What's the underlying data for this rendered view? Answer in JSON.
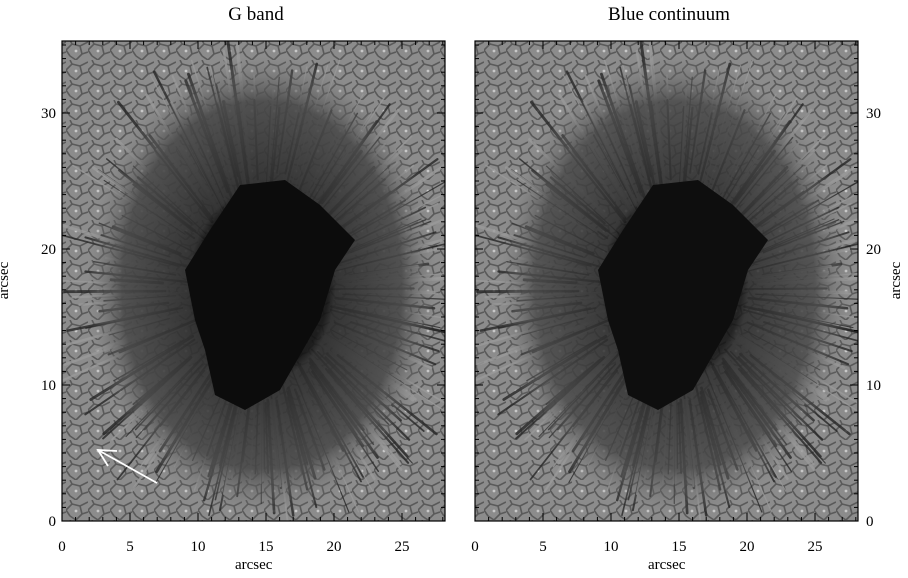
{
  "panels": [
    {
      "title": "G band",
      "xlabel": "arcsec",
      "ylabel": "arcsec"
    },
    {
      "title": "Blue continuum",
      "xlabel": "arcsec",
      "ylabel": "arcsec"
    }
  ],
  "x_ticks": [
    "0",
    "5",
    "10",
    "15",
    "20",
    "25"
  ],
  "y_ticks": [
    "0",
    "10",
    "20",
    "30"
  ],
  "colors": {
    "frame": "#000000",
    "arrow": "#ffffff",
    "penumbra": "#3a3a3a",
    "umbra": "#0d0d0d",
    "granulation": "#8a8a8a"
  },
  "annotations": [
    {
      "type": "arrow-icon",
      "panel": 0
    }
  ]
}
